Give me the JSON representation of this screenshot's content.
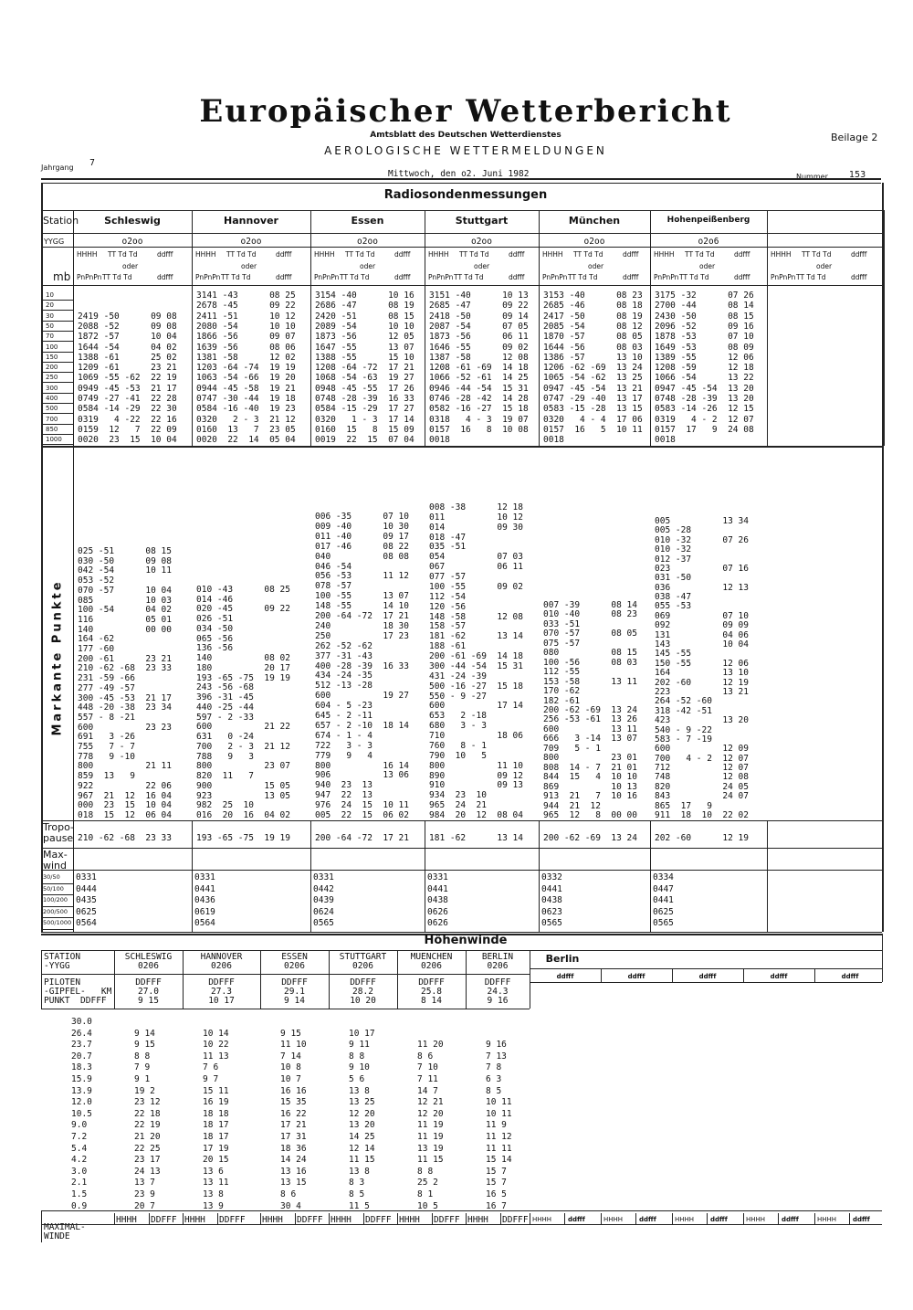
{
  "header": {
    "title": "Europäischer Wetterbericht",
    "subtitle": "Amtsblatt des Deutschen Wetterdienstes",
    "section": "AEROLOGISCHE WETTERMELDUNGEN",
    "supplement": "Beilage 2",
    "volume_label": "Jahrgang",
    "volume": "7",
    "date": "Mittwoch, den o2. Juni 1982",
    "number_label": "Nummer",
    "number": "153"
  },
  "radiosonde": {
    "title": "Radiosondenmessungen",
    "station_label": "Station",
    "yygg_label": "YYGG",
    "mb_label": "mb",
    "stations": [
      {
        "name": "Schleswig",
        "yygg": "o2oo"
      },
      {
        "name": "Hannover",
        "yygg": "o2oo"
      },
      {
        "name": "Essen",
        "yygg": "o2oo"
      },
      {
        "name": "Stuttgart",
        "yygg": "o2oo"
      },
      {
        "name": "München",
        "yygg": "o2oo"
      },
      {
        "name": "Hohenpeißenberg",
        "yygg": "o2o6"
      }
    ],
    "col_head": {
      "h1": [
        "HHHH",
        "TT Td Td",
        "ddfff"
      ],
      "oder": "oder",
      "h2": [
        "PnPnPn",
        "TT Td Td",
        "ddfff"
      ]
    },
    "levels": [
      10,
      20,
      30,
      50,
      70,
      100,
      150,
      200,
      250,
      300,
      400,
      500,
      700,
      850,
      1000
    ],
    "standard": [
      [
        null,
        null,
        "2419 -50      09 08",
        "2088 -52      09 08",
        "1872 -57      10 04",
        "1644 -54      04 02",
        "1388 -61      25 02",
        "1209 -61      23 21",
        "1069 -55 -62  22 19",
        "0949 -45 -53  21 17",
        "0749 -27 -41  22 28",
        "0584 -14 -29  22 30",
        "0319   4 -22  22 16",
        "0159  12   7  22 09",
        "0020  23  15  10 04"
      ],
      [
        "3141 -43      08 25",
        "2678 -45      09 22",
        "2411 -51      10 12",
        "2080 -54      10 10",
        "1866 -56      09 07",
        "1639 -56      08 06",
        "1381 -58      12 02",
        "1203 -64 -74  19 19",
        "1063 -54 -66  19 20",
        "0944 -45 -58  19 21",
        "0747 -30 -44  19 18",
        "0584 -16 -40  19 23",
        "0320   2 - 3  21 12",
        "0160  13   7  23 05",
        "0020  22  14  05 04"
      ],
      [
        "3154 -40      10 16",
        "2686 -47      08 19",
        "2420 -51      08 15",
        "2089 -54      10 10",
        "1873 -56      12 05",
        "1647 -55      13 07",
        "1388 -55      15 10",
        "1208 -64 -72  17 21",
        "1068 -54 -63  19 27",
        "0948 -45 -55  17 26",
        "0748 -28 -39  16 33",
        "0584 -15 -29  17 27",
        "0320   1 - 3  17 14",
        "0160  15   8  15 09",
        "0019  22  15  07 04"
      ],
      [
        "3151 -40      10 13",
        "2685 -47      09 22",
        "2418 -50      09 14",
        "2087 -54      07 05",
        "1873 -56      06 11",
        "1646 -55      09 02",
        "1387 -58      12 08",
        "1208 -61 -69  14 18",
        "1066 -52 -61  14 25",
        "0946 -44 -54  15 31",
        "0746 -28 -42  14 28",
        "0582 -16 -27  15 18",
        "0318   4 - 3  19 07",
        "0157  16   8  10 08",
        "0018"
      ],
      [
        "3153 -40      08 23",
        "2685 -46      08 18",
        "2417 -50      08 19",
        "2085 -54      08 12",
        "1870 -57      08 05",
        "1644 -56      08 03",
        "1386 -57      13 10",
        "1206 -62 -69  13 24",
        "1065 -54 -62  13 25",
        "0947 -45 -54  13 21",
        "0747 -29 -40  13 17",
        "0583 -15 -28  13 15",
        "0320   4 - 4  17 06",
        "0157  16   5  10 11",
        "0018"
      ],
      [
        "3175 -32      07 26",
        "2700 -44      08 14",
        "2430 -50      08 15",
        "2096 -52      09 16",
        "1878 -53      07 10",
        "1649 -53      08 09",
        "1389 -55      12 06",
        "1208 -59      12 18",
        "1066 -54      13 22",
        "0947 -45 -54  13 20",
        "0748 -28 -39  13 20",
        "0583 -14 -26  12 15",
        "0319   4 - 2  12 07",
        "0157  17   9  24 08",
        "0018"
      ]
    ],
    "marked_label": "Markante Punkte",
    "marked": [
      [
        "025 -51      08 15",
        "030 -50      09 08",
        "042 -54      10 11",
        "053 -52",
        "070 -57      10 04",
        "085          10 03",
        "100 -54      04 02",
        "116          05 01",
        "140          00 00",
        "164 -62",
        "177 -60",
        "200 -61      23 21",
        "210 -62 -68  23 33",
        "231 -59 -66",
        "277 -49 -57",
        "300 -45 -53  21 17",
        "448 -20 -38  23 34",
        "557 - 8 -21",
        "600          23 23",
        "691   3 -26",
        "755   7 - 7",
        "778   9 -10",
        "800          21 11",
        "859  13   9",
        "922          22 06",
        "967  21  12  16 04",
        "000  23  15  10 04",
        "018  15  12  06 04"
      ],
      [
        "010 -43      08 25",
        "014 -46",
        "020 -45      09 22",
        "026 -51",
        "034 -50",
        "065 -56",
        "136 -56",
        "140          08 02",
        "180          20 17",
        "193 -65 -75  19 19",
        "243 -56 -68",
        "396 -31 -45",
        "440 -25 -44",
        "597 - 2 -33",
        "600          21 22",
        "631   0 -24",
        "700   2 - 3  21 12",
        "788   9   3",
        "800          23 07",
        "820  11   7",
        "900          15 05",
        "923          13 05",
        "982  25  10",
        "016  20  16  04 02"
      ],
      [
        "006 -35      07 10",
        "009 -40      10 30",
        "011 -40      09 17",
        "017 -46      08 22",
        "040          08 08",
        "046 -54",
        "056 -53      11 12",
        "078 -57",
        "100 -55      13 07",
        "148 -55      14 10",
        "200 -64 -72  17 21",
        "240          18 30",
        "250          17 23",
        "262 -52 -62",
        "377 -31 -43",
        "400 -28 -39  16 33",
        "434 -24 -35",
        "512 -13 -28",
        "600          19 27",
        "604 - 5 -23",
        "645 - 2 -11",
        "657 - 2 -10  18 14",
        "674 - 1 - 4",
        "722   3 - 3",
        "779   9   4",
        "800          16 14",
        "906          13 06",
        "940  23  13",
        "947  22  13",
        "976  24  15  10 11",
        "005  22  15  06 02"
      ],
      [
        "008 -38      12 18",
        "011          10 12",
        "014          09 30",
        "018 -47",
        "035 -51",
        "054          07 03",
        "067          06 11",
        "077 -57",
        "100 -55      09 02",
        "112 -54",
        "120 -56",
        "148 -58      12 08",
        "158 -57",
        "181 -62      13 14",
        "188 -61",
        "200 -61 -69  14 18",
        "300 -44 -54  15 31",
        "431 -24 -39",
        "500 -16 -27  15 18",
        "550 - 9 -27",
        "600          17 14",
        "653   2 -18",
        "680   3 - 3",
        "710          18 06",
        "760   8 - 1",
        "790  10   5",
        "800          11 10",
        "890          09 12",
        "910          09 13",
        "934  23  10",
        "965  24  21",
        "984  20  12  08 04"
      ],
      [
        "007 -39      08 14",
        "010 -40      08 23",
        "033 -51",
        "070 -57      08 05",
        "075 -57",
        "080          08 15",
        "100 -56      08 03",
        "112 -55",
        "153 -58      13 11",
        "170 -62",
        "182 -61",
        "200 -62 -69  13 24",
        "256 -53 -61  13 26",
        "600          13 11",
        "666   3 -14  13 07",
        "709   5 - 1",
        "800          23 01",
        "808  14 - 7  21 01",
        "844  15   4  10 10",
        "869          10 13",
        "913  21   7  10 16",
        "944  21  12",
        "965  12   8  00 00"
      ],
      [
        "005          13 34",
        "005 -28",
        "010 -32      07 26",
        "010 -32",
        "012 -37",
        "023          07 16",
        "031 -50",
        "036          12 13",
        "038 -47",
        "055 -53",
        "069          07 10",
        "092          09 09",
        "131          04 06",
        "143          10 04",
        "145 -55",
        "150 -55      12 06",
        "164          13 10",
        "202 -60      12 19",
        "223          13 21",
        "264 -52 -60",
        "318 -42 -51",
        "423          13 20",
        "540 - 9 -22",
        "583 - 7 -19",
        "600          12 09",
        "700   4 - 2  12 07",
        "712          12 07",
        "748          12 08",
        "820          24 05",
        "843          24 07",
        "865  17   9",
        "911  18  10  22 02"
      ]
    ],
    "tropo_label": [
      "Tropo-",
      "pause"
    ],
    "tropopause": [
      "210 -62 -68  23 33",
      "193 -65 -75  19 19",
      "200 -64 -72  17 21",
      "181 -62      13 14",
      "200 -62 -69  13 24",
      "202 -60      12 19"
    ],
    "maxwind_label": [
      "Max-",
      "wind"
    ],
    "maxwind_levels": [
      "30/50",
      "50/100",
      "100/200",
      "200/500",
      "500/1000"
    ],
    "maxwind": [
      [
        "0331",
        "0444",
        "0435",
        "0625",
        "0564"
      ],
      [
        "0331",
        "0441",
        "0436",
        "0619",
        "0564"
      ],
      [
        "0331",
        "0442",
        "0439",
        "0624",
        "0565"
      ],
      [
        "0331",
        "0441",
        "0438",
        "0626",
        "0626"
      ],
      [
        "0332",
        "0441",
        "0438",
        "0623",
        "0565"
      ],
      [
        "0334",
        "0447",
        "0441",
        "0625",
        "0565"
      ]
    ]
  },
  "winds": {
    "title": "Höhenwinde",
    "station_label": [
      "STATION",
      "-YYGG"
    ],
    "stations": [
      {
        "name": "SCHLESWIG",
        "yygg": "0206",
        "km": "27.0",
        "ddfff": "9 15"
      },
      {
        "name": "HANNOVER",
        "yygg": "0206",
        "km": "27.3",
        "ddfff": "10 17"
      },
      {
        "name": "ESSEN",
        "yygg": "0206",
        "km": "29.1",
        "ddfff": "9 14"
      },
      {
        "name": "STUTTGART",
        "yygg": "0206",
        "km": "28.2",
        "ddfff": "10 20"
      },
      {
        "name": "MUENCHEN",
        "yygg": "0206",
        "km": "25.8",
        "ddfff": "8 14"
      },
      {
        "name": "BERLIN",
        "yygg": "0206",
        "km": "24.3",
        "ddfff": "9 16"
      }
    ],
    "extra_station": "Berlin",
    "extra_head": "ddfff",
    "extra_max_head": [
      "HHHH",
      "ddfff"
    ],
    "pilot_label": [
      "PILOTEN",
      "-GIPFEL-   KM",
      "PUNKT  DDFFF"
    ],
    "pilot_head": "DDFFF",
    "heights": [
      "30.0",
      "26.4",
      "23.7",
      "20.7",
      "18.3",
      "15.9",
      "13.9",
      "12.0",
      "10.5",
      "9.0",
      "7.2",
      "5.4",
      "4.2",
      "3.0",
      "2.1",
      "1.5",
      "0.9"
    ],
    "rows": [
      [
        null,
        "9 14",
        "9 15",
        "8 8",
        "7 9",
        "9 1",
        "19 2",
        "23 12",
        "22 18",
        "22 19",
        "21 20",
        "22 25",
        "23 17",
        "24 13",
        "13 7",
        "23 9",
        "20 7"
      ],
      [
        null,
        "10 14",
        "10 22",
        "11 13",
        "7 6",
        "9 7",
        "15 11",
        "16 19",
        "18 18",
        "18 17",
        "18 17",
        "17 19",
        "20 15",
        "13 6",
        "13 11",
        "13 8",
        "13 9"
      ],
      [
        null,
        "9 15",
        "11 10",
        "7 14",
        "10 8",
        "10 7",
        "16 16",
        "15 35",
        "16 22",
        "17 21",
        "17 31",
        "18 36",
        "14 24",
        "13 16",
        "13 15",
        "8 6",
        "30 4"
      ],
      [
        null,
        "10 17",
        "9 11",
        "8 8",
        "9 10",
        "5 6",
        "13 8",
        "13 25",
        "12 20",
        "13 20",
        "14 25",
        "12 14",
        "11 15",
        "13 8",
        "8 3",
        "8 5",
        "11 5"
      ],
      [
        null,
        null,
        "11 20",
        "8 6",
        "7 10",
        "7 11",
        "14 7",
        "12 21",
        "12 20",
        "11 19",
        "11 19",
        "13 19",
        "11 15",
        "8 8",
        "25 2",
        "8 1",
        "10 5"
      ],
      [
        null,
        null,
        "9 16",
        "7 13",
        "7 8",
        "6 3",
        "8 5",
        "10 11",
        "10 11",
        "11 9",
        "11 12",
        "11 11",
        "15 14",
        "15 7",
        "15 7",
        "16 5",
        "16 7"
      ]
    ],
    "max_label": [
      "MAXIMAL-",
      "WINDE"
    ],
    "max_head": [
      "HHHH",
      "DDFFF"
    ]
  }
}
